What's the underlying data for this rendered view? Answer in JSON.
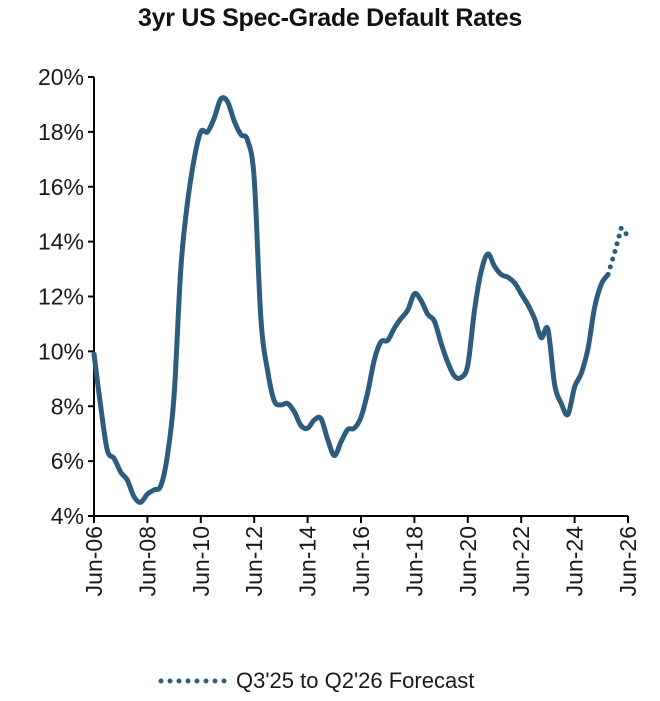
{
  "chart_data": {
    "type": "line",
    "title": "3yr US Spec-Grade Default Rates",
    "xlabel": "",
    "ylabel": "",
    "ylim": [
      4,
      20
    ],
    "xlim": [
      "2006-06",
      "2026-06"
    ],
    "grid": false,
    "y_ticks": [
      4,
      6,
      8,
      10,
      12,
      14,
      16,
      18,
      20
    ],
    "y_tick_labels": [
      "4%",
      "6%",
      "8%",
      "10%",
      "12%",
      "14%",
      "16%",
      "18%",
      "20%"
    ],
    "x_ticks": [
      "2006-06",
      "2008-06",
      "2010-06",
      "2012-06",
      "2014-06",
      "2016-06",
      "2018-06",
      "2020-06",
      "2022-06",
      "2024-06",
      "2026-06"
    ],
    "x_tick_labels": [
      "Jun-06",
      "Jun-08",
      "Jun-10",
      "Jun-12",
      "Jun-14",
      "Jun-16",
      "Jun-18",
      "Jun-20",
      "Jun-22",
      "Jun-24",
      "Jun-26"
    ],
    "series": [
      {
        "style": "solid",
        "color": "#2c5d7f",
        "points": [
          [
            "2006-06",
            9.9
          ],
          [
            "2006-09",
            8.0
          ],
          [
            "2006-12",
            6.4
          ],
          [
            "2007-03",
            6.1
          ],
          [
            "2007-06",
            5.6
          ],
          [
            "2007-09",
            5.3
          ],
          [
            "2007-12",
            4.7
          ],
          [
            "2008-03",
            4.5
          ],
          [
            "2008-06",
            4.8
          ],
          [
            "2008-09",
            4.95
          ],
          [
            "2008-12",
            5.1
          ],
          [
            "2009-03",
            6.2
          ],
          [
            "2009-06",
            8.4
          ],
          [
            "2009-09",
            13.0
          ],
          [
            "2009-12",
            15.4
          ],
          [
            "2010-03",
            17.0
          ],
          [
            "2010-06",
            18.0
          ],
          [
            "2010-09",
            18.0
          ],
          [
            "2010-12",
            18.5
          ],
          [
            "2011-03",
            19.2
          ],
          [
            "2011-06",
            19.1
          ],
          [
            "2011-09",
            18.4
          ],
          [
            "2011-12",
            17.9
          ],
          [
            "2012-03",
            17.7
          ],
          [
            "2012-06",
            16.3
          ],
          [
            "2012-09",
            11.2
          ],
          [
            "2012-12",
            9.3
          ],
          [
            "2013-03",
            8.2
          ],
          [
            "2013-06",
            8.05
          ],
          [
            "2013-09",
            8.1
          ],
          [
            "2013-12",
            7.8
          ],
          [
            "2014-03",
            7.3
          ],
          [
            "2014-06",
            7.2
          ],
          [
            "2014-09",
            7.5
          ],
          [
            "2014-12",
            7.55
          ],
          [
            "2015-03",
            6.8
          ],
          [
            "2015-06",
            6.2
          ],
          [
            "2015-09",
            6.7
          ],
          [
            "2015-12",
            7.15
          ],
          [
            "2016-03",
            7.2
          ],
          [
            "2016-06",
            7.6
          ],
          [
            "2016-09",
            8.5
          ],
          [
            "2016-12",
            9.7
          ],
          [
            "2017-03",
            10.35
          ],
          [
            "2017-06",
            10.4
          ],
          [
            "2017-09",
            10.85
          ],
          [
            "2017-12",
            11.2
          ],
          [
            "2018-03",
            11.5
          ],
          [
            "2018-06",
            12.1
          ],
          [
            "2018-09",
            11.85
          ],
          [
            "2018-12",
            11.35
          ],
          [
            "2019-03",
            11.1
          ],
          [
            "2019-06",
            10.3
          ],
          [
            "2019-09",
            9.6
          ],
          [
            "2019-12",
            9.1
          ],
          [
            "2020-03",
            9.05
          ],
          [
            "2020-06",
            9.5
          ],
          [
            "2020-09",
            11.5
          ],
          [
            "2020-12",
            12.9
          ],
          [
            "2021-03",
            13.55
          ],
          [
            "2021-06",
            13.1
          ],
          [
            "2021-09",
            12.8
          ],
          [
            "2021-12",
            12.7
          ],
          [
            "2022-03",
            12.5
          ],
          [
            "2022-06",
            12.1
          ],
          [
            "2022-09",
            11.7
          ],
          [
            "2022-12",
            11.2
          ],
          [
            "2023-03",
            10.5
          ],
          [
            "2023-06",
            10.8
          ],
          [
            "2023-09",
            8.8
          ],
          [
            "2023-12",
            8.1
          ],
          [
            "2024-03",
            7.7
          ],
          [
            "2024-06",
            8.7
          ],
          [
            "2024-09",
            9.2
          ],
          [
            "2024-12",
            10.1
          ],
          [
            "2025-03",
            11.6
          ],
          [
            "2025-06",
            12.45
          ],
          [
            "2025-09",
            12.8
          ]
        ]
      },
      {
        "name": "Q3'25 to Q2'26 Forecast",
        "style": "dotted",
        "color": "#2c5d7f",
        "points": [
          [
            "2025-09",
            12.8
          ],
          [
            "2025-12",
            13.6
          ],
          [
            "2026-03",
            14.5
          ],
          [
            "2026-06",
            14.2
          ]
        ]
      }
    ],
    "legend": {
      "position": "bottom-center",
      "entries": [
        "Q3'25 to Q2'26 Forecast"
      ]
    }
  }
}
